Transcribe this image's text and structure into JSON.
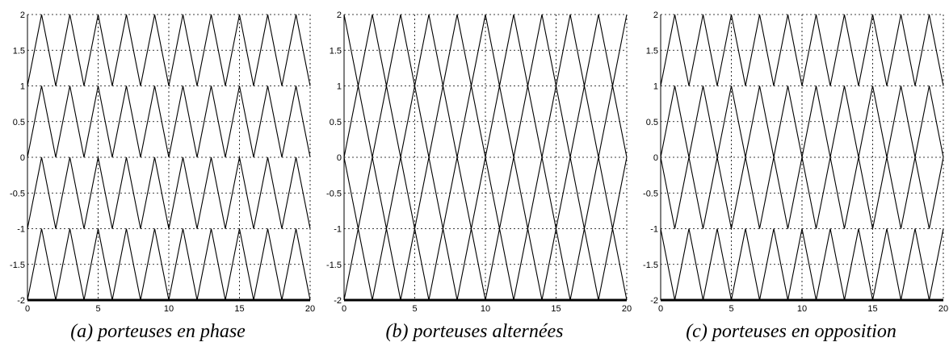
{
  "chart_data": [
    {
      "type": "line",
      "caption": "(a) porteuses en phase",
      "xlim": [
        0,
        20
      ],
      "ylim": [
        -2,
        2
      ],
      "x_ticks": [
        0,
        5,
        10,
        15,
        20
      ],
      "y_ticks": [
        2,
        1.5,
        1,
        0.5,
        0,
        -0.5,
        -1,
        -1.5,
        -2
      ],
      "x_tick_labels": [
        "0",
        "5",
        "10",
        "15",
        "20"
      ],
      "y_tick_labels": [
        "2",
        "1.5",
        "1",
        "0.5",
        "0",
        "-0.5",
        "-1",
        "-1.5",
        "-2"
      ],
      "grid": true,
      "carrier_period": 2,
      "series": [
        {
          "values_x": [
            0,
            1,
            2,
            3,
            4,
            5,
            6,
            7,
            8,
            9,
            10,
            11,
            12,
            13,
            14,
            15,
            16,
            17,
            18,
            19,
            20
          ],
          "values_y": [
            1,
            2,
            1,
            2,
            1,
            2,
            1,
            2,
            1,
            2,
            1,
            2,
            1,
            2,
            1,
            2,
            1,
            2,
            1,
            2,
            1
          ]
        },
        {
          "values_x": [
            0,
            1,
            2,
            3,
            4,
            5,
            6,
            7,
            8,
            9,
            10,
            11,
            12,
            13,
            14,
            15,
            16,
            17,
            18,
            19,
            20
          ],
          "values_y": [
            0,
            1,
            0,
            1,
            0,
            1,
            0,
            1,
            0,
            1,
            0,
            1,
            0,
            1,
            0,
            1,
            0,
            1,
            0,
            1,
            0
          ]
        },
        {
          "values_x": [
            0,
            1,
            2,
            3,
            4,
            5,
            6,
            7,
            8,
            9,
            10,
            11,
            12,
            13,
            14,
            15,
            16,
            17,
            18,
            19,
            20
          ],
          "values_y": [
            -1,
            0,
            -1,
            0,
            -1,
            0,
            -1,
            0,
            -1,
            0,
            -1,
            0,
            -1,
            0,
            -1,
            0,
            -1,
            0,
            -1,
            0,
            -1
          ]
        },
        {
          "values_x": [
            0,
            1,
            2,
            3,
            4,
            5,
            6,
            7,
            8,
            9,
            10,
            11,
            12,
            13,
            14,
            15,
            16,
            17,
            18,
            19,
            20
          ],
          "values_y": [
            -2,
            -1,
            -2,
            -1,
            -2,
            -1,
            -2,
            -1,
            -2,
            -1,
            -2,
            -1,
            -2,
            -1,
            -2,
            -1,
            -2,
            -1,
            -2,
            -1,
            -2
          ]
        }
      ]
    },
    {
      "type": "line",
      "caption": "(b) porteuses alternées",
      "xlim": [
        0,
        20
      ],
      "ylim": [
        -2,
        2
      ],
      "x_ticks": [
        0,
        5,
        10,
        15,
        20
      ],
      "y_ticks": [
        2,
        1.5,
        1,
        0.5,
        0,
        -0.5,
        -1,
        -1.5,
        -2
      ],
      "x_tick_labels": [
        "0",
        "5",
        "10",
        "15",
        "20"
      ],
      "y_tick_labels": [
        "2",
        "1.5",
        "1",
        "0.5",
        "0",
        "-0.5",
        "-1",
        "-1.5",
        "-2"
      ],
      "grid": true,
      "carrier_period": 2,
      "series": [
        {
          "values_x": [
            0,
            1,
            2,
            3,
            4,
            5,
            6,
            7,
            8,
            9,
            10,
            11,
            12,
            13,
            14,
            15,
            16,
            17,
            18,
            19,
            20
          ],
          "values_y": [
            2,
            1,
            2,
            1,
            2,
            1,
            2,
            1,
            2,
            1,
            2,
            1,
            2,
            1,
            2,
            1,
            2,
            1,
            2,
            1,
            2
          ]
        },
        {
          "values_x": [
            0,
            1,
            2,
            3,
            4,
            5,
            6,
            7,
            8,
            9,
            10,
            11,
            12,
            13,
            14,
            15,
            16,
            17,
            18,
            19,
            20
          ],
          "values_y": [
            0,
            1,
            0,
            1,
            0,
            1,
            0,
            1,
            0,
            1,
            0,
            1,
            0,
            1,
            0,
            1,
            0,
            1,
            0,
            1,
            0
          ]
        },
        {
          "values_x": [
            0,
            1,
            2,
            3,
            4,
            5,
            6,
            7,
            8,
            9,
            10,
            11,
            12,
            13,
            14,
            15,
            16,
            17,
            18,
            19,
            20
          ],
          "values_y": [
            0,
            -1,
            0,
            -1,
            0,
            -1,
            0,
            -1,
            0,
            -1,
            0,
            -1,
            0,
            -1,
            0,
            -1,
            0,
            -1,
            0,
            -1,
            0
          ]
        },
        {
          "values_x": [
            0,
            1,
            2,
            3,
            4,
            5,
            6,
            7,
            8,
            9,
            10,
            11,
            12,
            13,
            14,
            15,
            16,
            17,
            18,
            19,
            20
          ],
          "values_y": [
            -2,
            -1,
            -2,
            -1,
            -2,
            -1,
            -2,
            -1,
            -2,
            -1,
            -2,
            -1,
            -2,
            -1,
            -2,
            -1,
            -2,
            -1,
            -2,
            -1,
            -2
          ]
        }
      ]
    },
    {
      "type": "line",
      "caption": "(c) porteuses en opposition",
      "xlim": [
        0,
        20
      ],
      "ylim": [
        -2,
        2
      ],
      "x_ticks": [
        0,
        5,
        10,
        15,
        20
      ],
      "y_ticks": [
        2,
        1.5,
        1,
        0.5,
        0,
        -0.5,
        -1,
        -1.5,
        -2
      ],
      "x_tick_labels": [
        "0",
        "5",
        "10",
        "15",
        "20"
      ],
      "y_tick_labels": [
        "2",
        "1.5",
        "1",
        "0.5",
        "0",
        "-0.5",
        "-1",
        "-1.5",
        "-2"
      ],
      "grid": true,
      "carrier_period": 2,
      "series": [
        {
          "values_x": [
            0,
            1,
            2,
            3,
            4,
            5,
            6,
            7,
            8,
            9,
            10,
            11,
            12,
            13,
            14,
            15,
            16,
            17,
            18,
            19,
            20
          ],
          "values_y": [
            1,
            2,
            1,
            2,
            1,
            2,
            1,
            2,
            1,
            2,
            1,
            2,
            1,
            2,
            1,
            2,
            1,
            2,
            1,
            2,
            1
          ]
        },
        {
          "values_x": [
            0,
            1,
            2,
            3,
            4,
            5,
            6,
            7,
            8,
            9,
            10,
            11,
            12,
            13,
            14,
            15,
            16,
            17,
            18,
            19,
            20
          ],
          "values_y": [
            0,
            1,
            0,
            1,
            0,
            1,
            0,
            1,
            0,
            1,
            0,
            1,
            0,
            1,
            0,
            1,
            0,
            1,
            0,
            1,
            0
          ]
        },
        {
          "values_x": [
            0,
            1,
            2,
            3,
            4,
            5,
            6,
            7,
            8,
            9,
            10,
            11,
            12,
            13,
            14,
            15,
            16,
            17,
            18,
            19,
            20
          ],
          "values_y": [
            0,
            -1,
            0,
            -1,
            0,
            -1,
            0,
            -1,
            0,
            -1,
            0,
            -1,
            0,
            -1,
            0,
            -1,
            0,
            -1,
            0,
            -1,
            0
          ]
        },
        {
          "values_x": [
            0,
            1,
            2,
            3,
            4,
            5,
            6,
            7,
            8,
            9,
            10,
            11,
            12,
            13,
            14,
            15,
            16,
            17,
            18,
            19,
            20
          ],
          "values_y": [
            -1,
            -2,
            -1,
            -2,
            -1,
            -2,
            -1,
            -2,
            -1,
            -2,
            -1,
            -2,
            -1,
            -2,
            -1,
            -2,
            -1,
            -2,
            -1,
            -2,
            -1
          ]
        }
      ]
    }
  ]
}
